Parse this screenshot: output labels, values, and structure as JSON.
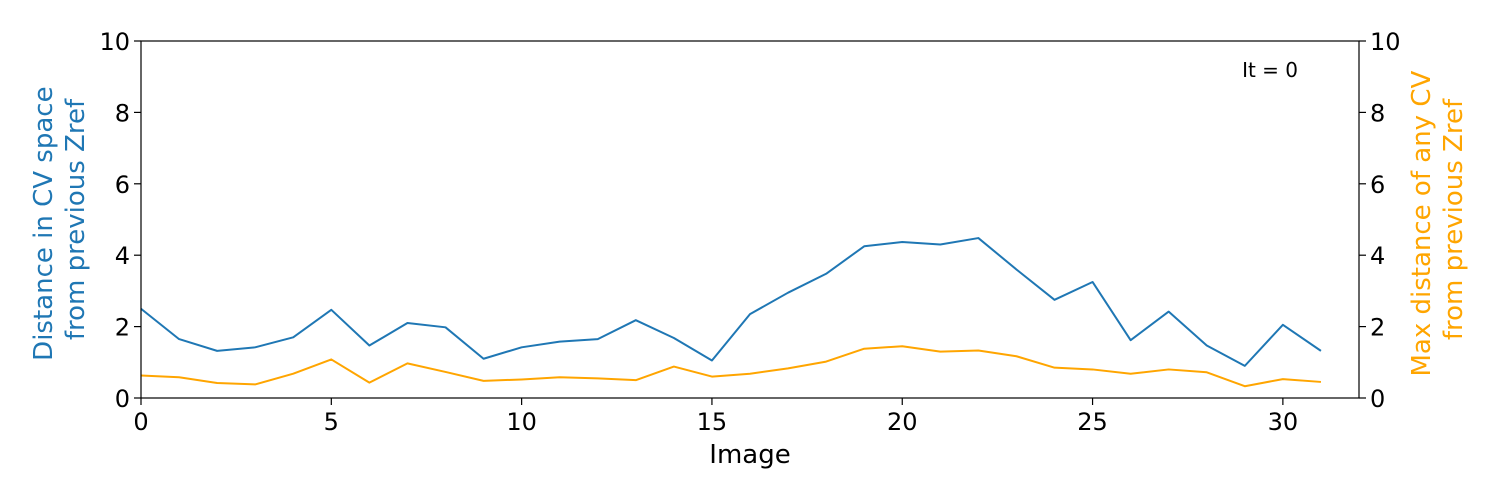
{
  "chart_data": {
    "type": "line",
    "xlabel": "Image",
    "ylabel_left": [
      "Distance in CV space",
      "from previous Zref"
    ],
    "ylabel_right": [
      "Max distance of any CV",
      "from previous Zref"
    ],
    "annotation": "It = 0",
    "xlim": [
      0,
      32
    ],
    "ylim_left": [
      0,
      10
    ],
    "ylim_right": [
      0,
      10
    ],
    "xticks": [
      0,
      5,
      10,
      15,
      20,
      25,
      30
    ],
    "yticks_left": [
      0,
      2,
      4,
      6,
      8,
      10
    ],
    "yticks_right": [
      0,
      2,
      4,
      6,
      8,
      10
    ],
    "grid": false,
    "colors": {
      "left": "#1f77b4",
      "right": "#ffa500"
    },
    "x": [
      0,
      1,
      2,
      3,
      4,
      5,
      6,
      7,
      8,
      9,
      10,
      11,
      12,
      13,
      14,
      15,
      16,
      17,
      18,
      19,
      20,
      21,
      22,
      23,
      24,
      25,
      26,
      27,
      28,
      29,
      30,
      31
    ],
    "series": [
      {
        "axis": "left",
        "color": "#1f77b4",
        "values": [
          2.5,
          1.65,
          1.32,
          1.42,
          1.7,
          2.47,
          1.47,
          2.1,
          1.98,
          1.1,
          1.42,
          1.58,
          1.65,
          2.18,
          1.68,
          1.05,
          2.35,
          2.95,
          3.48,
          4.25,
          4.37,
          4.3,
          4.48,
          3.6,
          2.75,
          3.25,
          1.62,
          2.42,
          1.47,
          0.9,
          2.05,
          1.32
        ]
      },
      {
        "axis": "right",
        "color": "#ffa500",
        "values": [
          0.63,
          0.58,
          0.42,
          0.38,
          0.68,
          1.08,
          0.43,
          0.97,
          0.73,
          0.48,
          0.52,
          0.58,
          0.55,
          0.5,
          0.88,
          0.6,
          0.68,
          0.83,
          1.02,
          1.38,
          1.45,
          1.3,
          1.33,
          1.17,
          0.85,
          0.8,
          0.68,
          0.8,
          0.72,
          0.33,
          0.53,
          0.45
        ]
      }
    ]
  }
}
